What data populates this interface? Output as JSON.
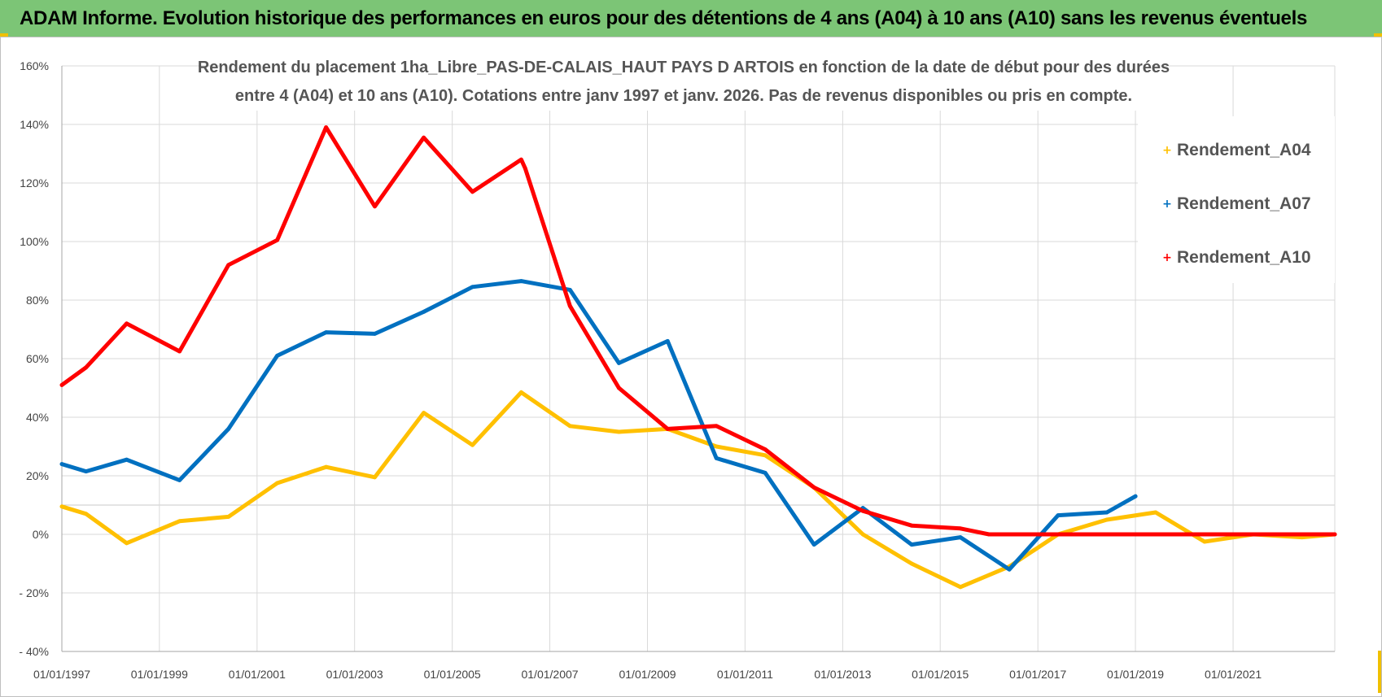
{
  "banner": {
    "text": "ADAM Informe. Evolution historique des performances en euros pour des détentions de 4 ans (A04) à 10 ans (A10) sans les revenus éventuels"
  },
  "colors": {
    "banner_bg": "#7cc576",
    "A04": "#ffc000",
    "A07": "#0070c0",
    "A10": "#ff0000",
    "corner_marks": "#f0c000"
  },
  "chart_data": {
    "type": "line",
    "title_lines": [
      "Rendement du placement 1ha_Libre_PAS-DE-CALAIS_HAUT PAYS D ARTOIS en fonction de la date de début pour des durées",
      "entre 4 (A04) et 10 ans (A10).  Cotations entre janv 1997 et janv. 2026. Pas de revenus disponibles ou pris en compte."
    ],
    "xlabel": "",
    "ylabel": "",
    "x_tick_labels": [
      "01/01/1997",
      "01/01/1999",
      "01/01/2001",
      "01/01/2003",
      "01/01/2005",
      "01/01/2007",
      "01/01/2009",
      "01/01/2011",
      "01/01/2013",
      "01/01/2015",
      "01/01/2017",
      "01/01/2019",
      "01/01/2021"
    ],
    "x_range": [
      "1997-01-01",
      "2023-02-01"
    ],
    "y_tick_labels": [
      "160%",
      "140%",
      "120%",
      "100%",
      "80%",
      "60%",
      "40%",
      "20%",
      "0%",
      "- 20%",
      "- 40%"
    ],
    "ylim": [
      -40,
      160
    ],
    "y_unit": "%",
    "grid": true,
    "legend_position": "top-right",
    "series": [
      {
        "name": "Rendement_A04",
        "color": "#ffc000",
        "points": [
          [
            "1997-01-01",
            9.5
          ],
          [
            "1997-07-01",
            7
          ],
          [
            "1998-05-01",
            -3
          ],
          [
            "1999-06-01",
            4.5
          ],
          [
            "2000-06-01",
            6
          ],
          [
            "2001-06-01",
            17.5
          ],
          [
            "2002-06-01",
            23
          ],
          [
            "2003-06-01",
            19.5
          ],
          [
            "2004-06-01",
            41.5
          ],
          [
            "2005-06-01",
            30.5
          ],
          [
            "2006-06-01",
            48.5
          ],
          [
            "2007-06-01",
            37
          ],
          [
            "2008-06-01",
            35
          ],
          [
            "2009-06-01",
            36
          ],
          [
            "2010-06-01",
            30
          ],
          [
            "2011-06-01",
            27
          ],
          [
            "2012-06-01",
            16
          ],
          [
            "2013-06-01",
            0
          ],
          [
            "2014-06-01",
            -10
          ],
          [
            "2015-06-01",
            -18
          ],
          [
            "2016-06-01",
            -11
          ],
          [
            "2017-06-01",
            0
          ],
          [
            "2018-06-01",
            5
          ],
          [
            "2019-06-01",
            7.5
          ],
          [
            "2020-06-01",
            -2.5
          ],
          [
            "2021-06-01",
            0
          ],
          [
            "2022-06-01",
            -1
          ],
          [
            "2023-02-01",
            0
          ]
        ]
      },
      {
        "name": "Rendement_A07",
        "color": "#0070c0",
        "points": [
          [
            "1997-01-01",
            24
          ],
          [
            "1997-07-01",
            21.5
          ],
          [
            "1998-05-01",
            25.5
          ],
          [
            "1999-06-01",
            18.5
          ],
          [
            "2000-06-01",
            36
          ],
          [
            "2001-06-01",
            61
          ],
          [
            "2002-06-01",
            69
          ],
          [
            "2003-06-01",
            68.5
          ],
          [
            "2004-06-01",
            76
          ],
          [
            "2005-06-01",
            84.5
          ],
          [
            "2006-06-01",
            86.5
          ],
          [
            "2007-06-01",
            83.5
          ],
          [
            "2008-06-01",
            58.5
          ],
          [
            "2009-06-01",
            66
          ],
          [
            "2010-06-01",
            26
          ],
          [
            "2011-06-01",
            21
          ],
          [
            "2012-06-01",
            -3.5
          ],
          [
            "2013-06-01",
            9
          ],
          [
            "2014-06-01",
            -3.5
          ],
          [
            "2015-06-01",
            -1
          ],
          [
            "2016-06-01",
            -12
          ],
          [
            "2017-06-01",
            6.5
          ],
          [
            "2018-06-01",
            7.5
          ],
          [
            "2019-01-01",
            13
          ]
        ]
      },
      {
        "name": "Rendement_A10",
        "color": "#ff0000",
        "points": [
          [
            "1997-01-01",
            51
          ],
          [
            "1997-07-01",
            57
          ],
          [
            "1998-05-01",
            72
          ],
          [
            "1999-06-01",
            62.5
          ],
          [
            "2000-06-01",
            92
          ],
          [
            "2001-06-01",
            100.5
          ],
          [
            "2002-06-01",
            139
          ],
          [
            "2003-06-01",
            112
          ],
          [
            "2004-06-01",
            135.5
          ],
          [
            "2005-06-01",
            117
          ],
          [
            "2006-06-01",
            128
          ],
          [
            "2006-07-01",
            125
          ],
          [
            "2007-06-01",
            78
          ],
          [
            "2008-06-01",
            50
          ],
          [
            "2009-06-01",
            36
          ],
          [
            "2010-06-01",
            37
          ],
          [
            "2011-06-01",
            29
          ],
          [
            "2012-06-01",
            16
          ],
          [
            "2013-06-01",
            8
          ],
          [
            "2014-06-01",
            3
          ],
          [
            "2015-06-01",
            2
          ],
          [
            "2016-01-01",
            0
          ],
          [
            "2023-02-01",
            0
          ]
        ]
      }
    ]
  }
}
